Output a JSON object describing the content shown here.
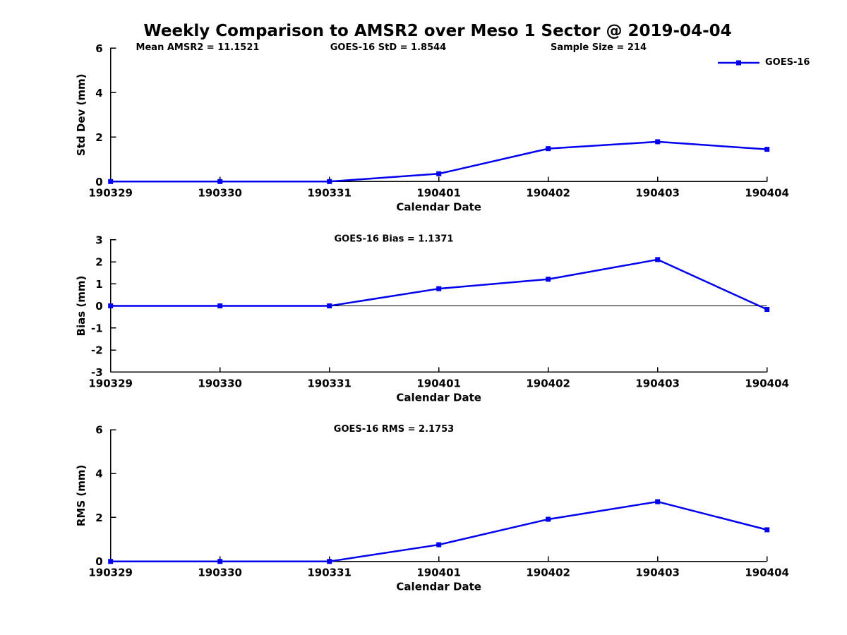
{
  "title": "Weekly Comparison to AMSR2 over Meso 1 Sector @ 2019-04-04",
  "colors": {
    "background": "#ffffff",
    "text": "#000000",
    "series_blue": "#0000ee"
  },
  "legend": {
    "label": "GOES-16",
    "color": "#0000ee",
    "marker": "square",
    "position": "top-right"
  },
  "chart_data": [
    {
      "type": "line",
      "name": "std-dev",
      "categories": [
        "190329",
        "190330",
        "190331",
        "190401",
        "190402",
        "190403",
        "190404"
      ],
      "series": [
        {
          "name": "GOES-16",
          "color": "#0000ee",
          "marker": "square",
          "values": [
            0,
            0,
            0,
            0.35,
            1.48,
            1.79,
            1.45
          ]
        }
      ],
      "xlabel": "Calendar Date",
      "ylabel": "Std Dev (mm)",
      "ylim": [
        0,
        6
      ],
      "yticks": [
        0,
        2,
        4,
        6
      ],
      "zero_line": false,
      "grid": false,
      "annotations": [
        "Mean AMSR2 = 11.1521",
        "GOES-16 StD = 1.8544",
        "Sample Size = 214"
      ]
    },
    {
      "type": "line",
      "name": "bias",
      "categories": [
        "190329",
        "190330",
        "190331",
        "190401",
        "190402",
        "190403",
        "190404"
      ],
      "series": [
        {
          "name": "GOES-16",
          "color": "#0000ee",
          "marker": "square",
          "values": [
            0,
            0,
            0,
            0.78,
            1.21,
            2.1,
            -0.16
          ]
        }
      ],
      "xlabel": "Calendar Date",
      "ylabel": "Bias (mm)",
      "ylim": [
        -3,
        3
      ],
      "yticks": [
        -3,
        -2,
        -1,
        0,
        1,
        2,
        3
      ],
      "zero_line": true,
      "grid": false,
      "annotations": [
        "GOES-16 Bias  = 1.1371"
      ]
    },
    {
      "type": "line",
      "name": "rms",
      "categories": [
        "190329",
        "190330",
        "190331",
        "190401",
        "190402",
        "190403",
        "190404"
      ],
      "series": [
        {
          "name": "GOES-16",
          "color": "#0000ee",
          "marker": "square",
          "values": [
            0,
            0,
            0,
            0.76,
            1.92,
            2.72,
            1.44
          ]
        }
      ],
      "xlabel": "Calendar Date",
      "ylabel": "RMS (mm)",
      "ylim": [
        0,
        6
      ],
      "yticks": [
        0,
        2,
        4,
        6
      ],
      "zero_line": false,
      "grid": false,
      "annotations": [
        "GOES-16 RMS = 2.1753"
      ]
    }
  ]
}
